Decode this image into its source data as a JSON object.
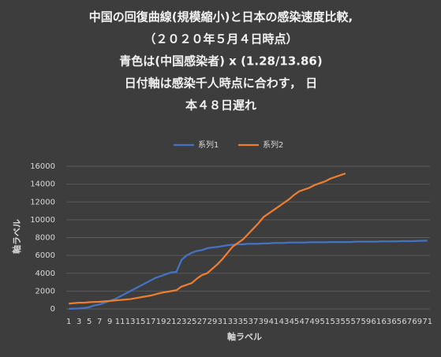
{
  "chart_data": {
    "type": "line",
    "title": [
      "中国の回復曲線(規模縮小)と日本の感染速度比較,",
      "（２０２０年５月４日時点）",
      "青色は(中国感染者) x (1.28/13.86)",
      "日付軸は感染千人時点に合わす， 日",
      "本４８日遅れ"
    ],
    "x_label": "軸ラベル",
    "y_label": "軸ラベル",
    "categories": [
      1,
      null,
      3,
      null,
      5,
      null,
      7,
      null,
      9,
      null,
      11,
      null,
      13,
      null,
      15,
      null,
      17,
      null,
      19,
      null,
      21,
      null,
      23,
      null,
      25,
      null,
      27,
      null,
      29,
      null,
      31,
      null,
      33,
      null,
      35,
      null,
      37,
      null,
      39,
      null,
      41,
      null,
      43,
      null,
      45,
      null,
      47,
      null,
      49,
      null,
      51,
      null,
      53,
      null,
      55,
      null,
      57,
      null,
      59,
      null,
      61,
      null,
      63,
      null,
      65,
      null,
      67,
      null,
      69,
      null,
      71
    ],
    "series": [
      {
        "name": "系列1",
        "color": "#4472c4",
        "values": [
          0,
          30,
          60,
          100,
          200,
          400,
          500,
          700,
          900,
          1100,
          1400,
          1700,
          2000,
          2300,
          2600,
          2900,
          3200,
          3500,
          3700,
          3900,
          4100,
          4150,
          5500,
          6000,
          6300,
          6500,
          6600,
          6800,
          6900,
          6950,
          7050,
          7150,
          7200,
          7250,
          7250,
          7300,
          7300,
          7300,
          7350,
          7350,
          7400,
          7400,
          7400,
          7450,
          7450,
          7450,
          7450,
          7480,
          7480,
          7480,
          7480,
          7500,
          7500,
          7500,
          7500,
          7500,
          7550,
          7550,
          7550,
          7550,
          7550,
          7580,
          7580,
          7580,
          7580,
          7600,
          7600,
          7600,
          7620,
          7650,
          7650
        ]
      },
      {
        "name": "系列2",
        "color": "#ed7d31",
        "values": [
          600,
          650,
          700,
          700,
          750,
          780,
          800,
          850,
          900,
          950,
          1000,
          1050,
          1100,
          1200,
          1300,
          1400,
          1500,
          1650,
          1800,
          1900,
          2000,
          2100,
          2500,
          2700,
          2900,
          3400,
          3800,
          4000,
          4500,
          5000,
          5600,
          6300,
          7000,
          7400,
          7800,
          8400,
          9000,
          9600,
          10300,
          10700,
          11100,
          11500,
          11900,
          12300,
          12800,
          13200,
          13400,
          13600,
          13900,
          14100,
          14300,
          14600,
          14800,
          15000,
          15200,
          null,
          null,
          null,
          null,
          null,
          null,
          null,
          null,
          null,
          null,
          null,
          null,
          null,
          null,
          null,
          null
        ]
      }
    ],
    "ylim": [
      0,
      16000
    ],
    "yticks": [
      0,
      2000,
      4000,
      6000,
      8000,
      10000,
      12000,
      14000,
      16000
    ],
    "grid": true
  }
}
